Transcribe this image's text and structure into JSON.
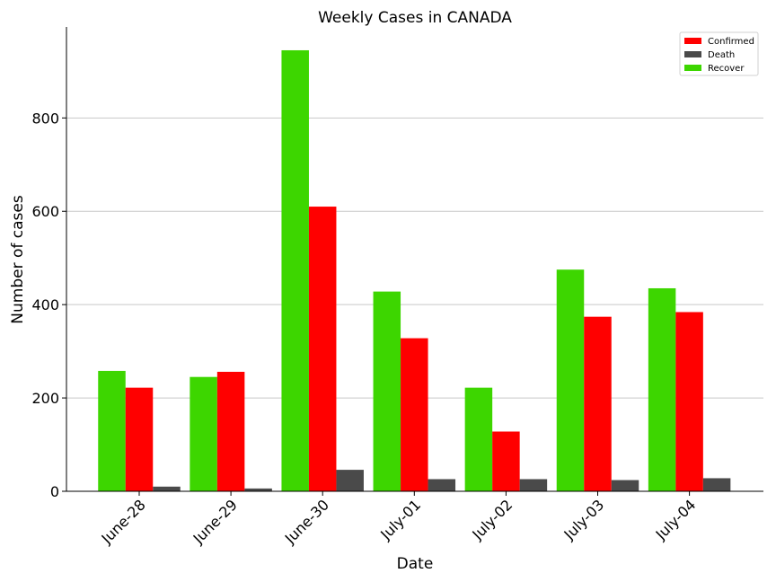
{
  "chart_data": {
    "type": "bar",
    "title": "Weekly Cases in CANADA",
    "xlabel": "Date",
    "ylabel": "Number of cases",
    "categories": [
      "June-28",
      "June-29",
      "June-30",
      "July-01",
      "July-02",
      "July-03",
      "July-04"
    ],
    "series": [
      {
        "name": "Recover",
        "color": "#3dd600",
        "values": [
          258,
          245,
          945,
          428,
          222,
          475,
          435
        ]
      },
      {
        "name": "Confirmed",
        "color": "#ff0000",
        "values": [
          222,
          256,
          610,
          328,
          128,
          374,
          384
        ]
      },
      {
        "name": "Death",
        "color": "#4a4a4a",
        "values": [
          10,
          6,
          46,
          26,
          26,
          24,
          28
        ]
      }
    ],
    "legend_order": [
      "Confirmed",
      "Death",
      "Recover"
    ],
    "ylim": [
      0,
      995
    ],
    "yticks": [
      0,
      200,
      400,
      600,
      800
    ],
    "grid": "horizontal",
    "legend_position": "top-right"
  }
}
